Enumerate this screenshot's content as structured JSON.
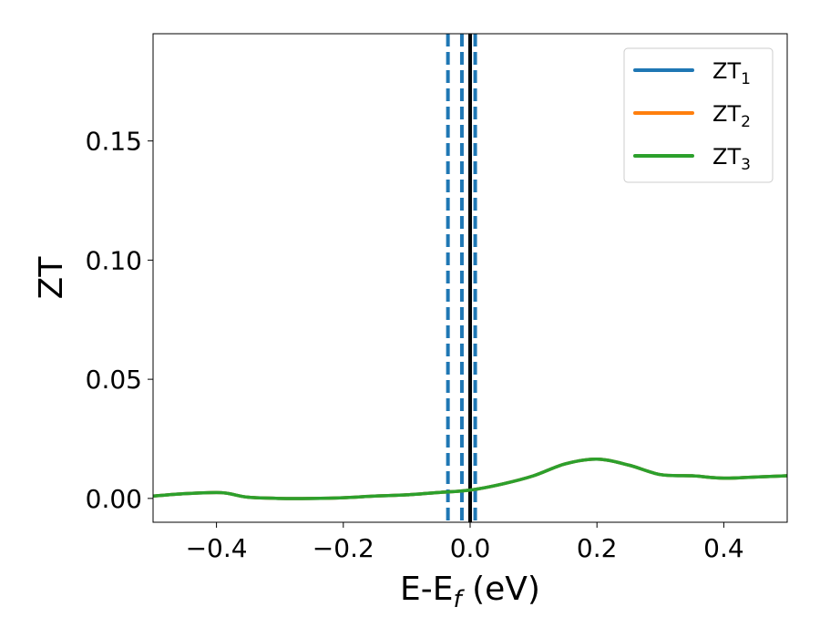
{
  "chart_data": {
    "type": "line",
    "xlabel": {
      "main": "E-E",
      "sub": "f",
      "unit": " (eV)"
    },
    "ylabel": "ZT",
    "xlim": [
      -0.5,
      0.5
    ],
    "ylim": [
      -0.01,
      0.195
    ],
    "xticks": [
      -0.4,
      -0.2,
      0.0,
      0.2,
      0.4
    ],
    "xtick_labels": [
      "−0.4",
      "−0.2",
      "0.0",
      "0.2",
      "0.4"
    ],
    "yticks": [
      0.0,
      0.05,
      0.1,
      0.15
    ],
    "ytick_labels": [
      "0.00",
      "0.05",
      "0.10",
      "0.15"
    ],
    "grid": false,
    "legend_position": "top-right",
    "series": [
      {
        "name": "ZT",
        "name_sub": "1",
        "color": "#1f77b4",
        "x": [
          -0.5,
          -0.45,
          -0.4,
          -0.38,
          -0.35,
          -0.3,
          -0.25,
          -0.2,
          -0.15,
          -0.1,
          -0.05,
          0.0,
          0.05,
          0.1,
          0.15,
          0.2,
          0.25,
          0.3,
          0.35,
          0.4,
          0.45,
          0.5
        ],
        "y": [
          0.001,
          0.002,
          0.0025,
          0.002,
          0.0005,
          0.0,
          0.0,
          0.0003,
          0.001,
          0.0015,
          0.0025,
          0.0035,
          0.006,
          0.0095,
          0.0145,
          0.0165,
          0.014,
          0.01,
          0.0095,
          0.0085,
          0.009,
          0.0095
        ]
      },
      {
        "name": "ZT",
        "name_sub": "2",
        "color": "#ff7f0e",
        "x": [
          -0.5,
          -0.45,
          -0.4,
          -0.38,
          -0.35,
          -0.3,
          -0.25,
          -0.2,
          -0.15,
          -0.1,
          -0.05,
          0.0,
          0.05,
          0.1,
          0.15,
          0.2,
          0.25,
          0.3,
          0.35,
          0.4,
          0.45,
          0.5
        ],
        "y": [
          0.001,
          0.002,
          0.0025,
          0.002,
          0.0005,
          0.0,
          0.0,
          0.0003,
          0.001,
          0.0015,
          0.0025,
          0.0035,
          0.006,
          0.0095,
          0.0145,
          0.0165,
          0.014,
          0.01,
          0.0095,
          0.0085,
          0.009,
          0.0095
        ]
      },
      {
        "name": "ZT",
        "name_sub": "3",
        "color": "#2ca02c",
        "x": [
          -0.5,
          -0.45,
          -0.4,
          -0.38,
          -0.35,
          -0.3,
          -0.25,
          -0.2,
          -0.15,
          -0.1,
          -0.05,
          0.0,
          0.05,
          0.1,
          0.15,
          0.2,
          0.25,
          0.3,
          0.35,
          0.4,
          0.45,
          0.5
        ],
        "y": [
          0.001,
          0.002,
          0.0025,
          0.002,
          0.0005,
          0.0,
          0.0,
          0.0003,
          0.001,
          0.0015,
          0.0025,
          0.0035,
          0.006,
          0.0095,
          0.0145,
          0.0165,
          0.014,
          0.01,
          0.0095,
          0.0085,
          0.009,
          0.0095
        ]
      }
    ],
    "vlines": [
      {
        "x": -0.035,
        "style": "dashed",
        "color": "#1f77b4"
      },
      {
        "x": -0.013,
        "style": "dashed",
        "color": "#1f77b4"
      },
      {
        "x": 0.008,
        "style": "dashed",
        "color": "#1f77b4"
      },
      {
        "x": 0.0,
        "style": "solid",
        "color": "#000000"
      }
    ]
  }
}
